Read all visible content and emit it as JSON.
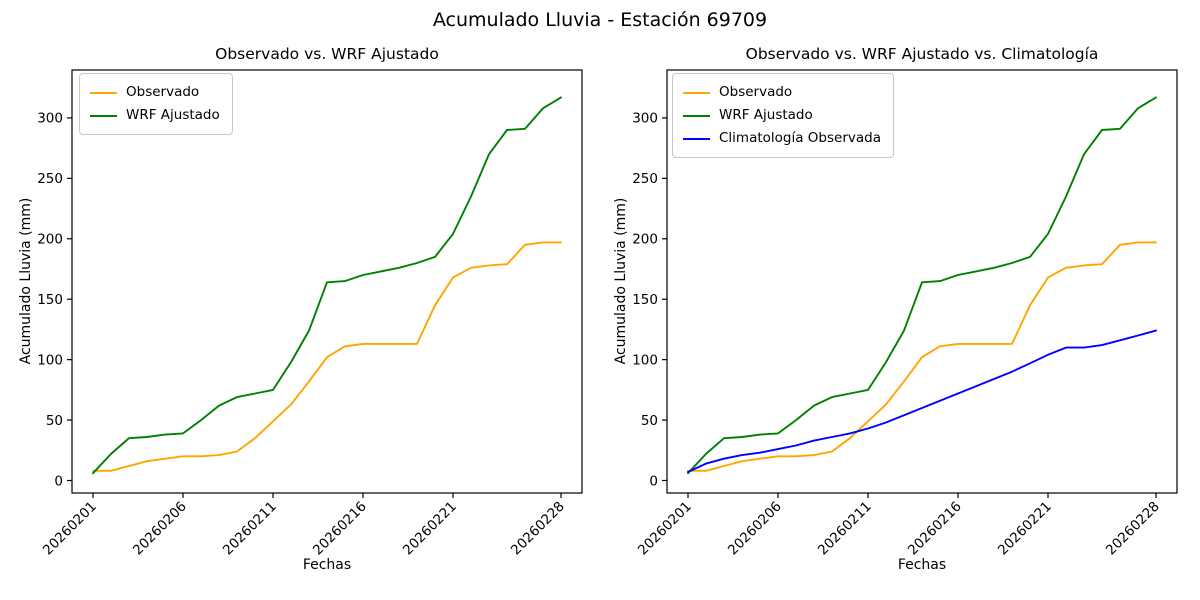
{
  "figure": {
    "title": "Acumulado Lluvia - Estación 69709",
    "background_color": "#ffffff"
  },
  "axes_shared": {
    "xlabel": "Fechas",
    "ylabel": "Acumulado Lluvia (mm)",
    "yticks": [
      0,
      50,
      100,
      150,
      200,
      250,
      300
    ],
    "xtick_indices": [
      0,
      5,
      10,
      15,
      20,
      26
    ],
    "xtick_labels": [
      "20260201",
      "20260206",
      "20260211",
      "20260216",
      "20260221",
      "20260228"
    ],
    "xtick_rotation_deg": 45,
    "ylim_approx": [
      -10,
      338
    ],
    "grid": false,
    "spine_color": "#000000"
  },
  "colors": {
    "observado": "#FFA500",
    "wrf_ajustado": "#008000",
    "climatologia": "#0000FF"
  },
  "chart_data": [
    {
      "type": "line",
      "title": "Observado vs. WRF Ajustado",
      "xlabel": "Fechas",
      "ylabel": "Acumulado Lluvia (mm)",
      "legend_position": "upper left",
      "x": [
        "20260201",
        "20260202",
        "20260203",
        "20260204",
        "20260205",
        "20260206",
        "20260207",
        "20260208",
        "20260209",
        "20260210",
        "20260211",
        "20260212",
        "20260213",
        "20260214",
        "20260215",
        "20260216",
        "20260217",
        "20260218",
        "20260219",
        "20260220",
        "20260221",
        "20260222",
        "20260223",
        "20260224",
        "20260225",
        "20260226",
        "20260228"
      ],
      "series": [
        {
          "name": "Observado",
          "color": "#FFA500",
          "values": [
            8,
            8,
            12,
            16,
            18,
            20,
            20,
            21,
            24,
            35,
            49,
            63,
            82,
            102,
            111,
            113,
            113,
            113,
            113,
            145,
            168,
            176,
            178,
            179,
            195,
            197,
            197
          ]
        },
        {
          "name": "WRF Ajustado",
          "color": "#008000",
          "values": [
            6,
            22,
            35,
            36,
            38,
            39,
            50,
            62,
            69,
            72,
            75,
            98,
            124,
            164,
            165,
            170,
            173,
            176,
            180,
            185,
            204,
            235,
            270,
            290,
            291,
            308,
            317
          ]
        }
      ]
    },
    {
      "type": "line",
      "title": "Observado vs. WRF Ajustado vs. Climatología",
      "xlabel": "Fechas",
      "ylabel": "Acumulado Lluvia (mm)",
      "legend_position": "upper left",
      "x": [
        "20260201",
        "20260202",
        "20260203",
        "20260204",
        "20260205",
        "20260206",
        "20260207",
        "20260208",
        "20260209",
        "20260210",
        "20260211",
        "20260212",
        "20260213",
        "20260214",
        "20260215",
        "20260216",
        "20260217",
        "20260218",
        "20260219",
        "20260220",
        "20260221",
        "20260222",
        "20260223",
        "20260224",
        "20260225",
        "20260226",
        "20260228"
      ],
      "series": [
        {
          "name": "Observado",
          "color": "#FFA500",
          "values": [
            8,
            8,
            12,
            16,
            18,
            20,
            20,
            21,
            24,
            35,
            49,
            63,
            82,
            102,
            111,
            113,
            113,
            113,
            113,
            145,
            168,
            176,
            178,
            179,
            195,
            197,
            197
          ]
        },
        {
          "name": "WRF Ajustado",
          "color": "#008000",
          "values": [
            6,
            22,
            35,
            36,
            38,
            39,
            50,
            62,
            69,
            72,
            75,
            98,
            124,
            164,
            165,
            170,
            173,
            176,
            180,
            185,
            204,
            235,
            270,
            290,
            291,
            308,
            317
          ]
        },
        {
          "name": "Climatología Observada",
          "color": "#0000FF",
          "values": [
            7,
            14,
            18,
            21,
            23,
            26,
            29,
            33,
            36,
            39,
            43,
            48,
            54,
            60,
            66,
            72,
            78,
            84,
            90,
            97,
            104,
            110,
            110,
            112,
            116,
            120,
            124
          ]
        }
      ]
    }
  ]
}
